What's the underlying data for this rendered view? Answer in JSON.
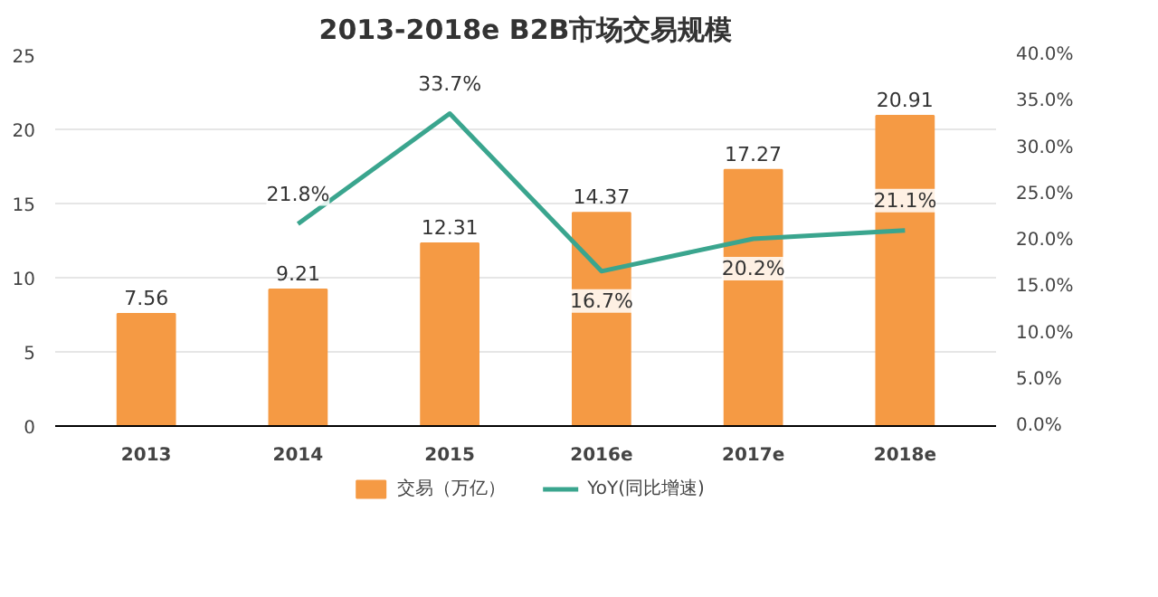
{
  "chart_data": {
    "type": "bar",
    "title": "2013-2018e B2B市场交易规模",
    "categories": [
      "2013",
      "2014",
      "2015",
      "2016e",
      "2017e",
      "2018e"
    ],
    "series": [
      {
        "name": "交易（万亿）",
        "color": "#f59a44",
        "values": [
          7.56,
          9.21,
          12.31,
          14.37,
          17.27,
          20.91
        ]
      },
      {
        "name": "YoY(同比增速)",
        "type": "line",
        "axis": "y2",
        "color": "#3aa58e",
        "values": [
          null,
          21.8,
          33.7,
          16.7,
          20.2,
          21.1
        ],
        "value_labels": [
          null,
          "21.8%",
          "33.7%",
          "16.7%",
          "20.2%",
          "21.1%"
        ]
      }
    ],
    "data_labels": true,
    "ylim": [
      0,
      25
    ],
    "yticks": [
      0,
      5,
      10,
      15,
      20,
      25
    ],
    "y2lim": [
      0,
      40
    ],
    "y2ticks": [
      {
        "value": 0,
        "label": "0.0%"
      },
      {
        "value": 5,
        "label": "5.0%"
      },
      {
        "value": 10,
        "label": "10.0%"
      },
      {
        "value": 15,
        "label": "15.0%"
      },
      {
        "value": 20,
        "label": "20.0%"
      },
      {
        "value": 25,
        "label": "25.0%"
      },
      {
        "value": 30,
        "label": "30.0%"
      },
      {
        "value": 35,
        "label": "35.0%"
      },
      {
        "value": 40,
        "label": "40.0%"
      }
    ],
    "grid": "y",
    "legend": "bottom",
    "marker": "none",
    "line_style": "solid"
  }
}
